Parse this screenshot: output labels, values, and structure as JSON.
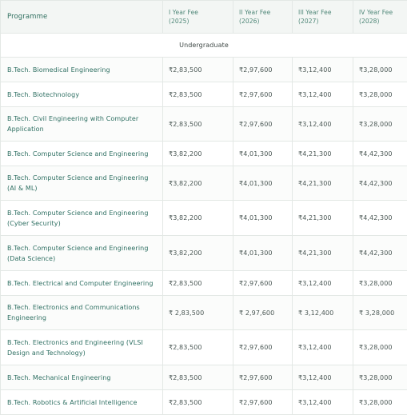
{
  "table": {
    "headers": {
      "programme": "Programme",
      "year1_line1": "I Year Fee",
      "year1_line2": "(2025)",
      "year2_line1": "II Year Fee",
      "year2_line2": "(2026)",
      "year3_line1": "III Year Fee",
      "year3_line2": "(2027)",
      "year4_line1": "IV Year Fee",
      "year4_line2": "(2028)"
    },
    "section_label": "Undergraduate",
    "rows": [
      {
        "programme": "B.Tech. Biomedical Engineering",
        "y1": "₹2,83,500",
        "y2": "₹2,97,600",
        "y3": "₹3,12,400",
        "y4": "₹3,28,000"
      },
      {
        "programme": "B.Tech. Biotechnology",
        "y1": "₹2,83,500",
        "y2": "₹2,97,600",
        "y3": "₹3,12,400",
        "y4": "₹3,28,000"
      },
      {
        "programme": "B.Tech. Civil Engineering with Computer Application",
        "y1": "₹2,83,500",
        "y2": "₹2,97,600",
        "y3": "₹3,12,400",
        "y4": "₹3,28,000"
      },
      {
        "programme": "B.Tech. Computer Science and Engineering",
        "y1": "₹3,82,200",
        "y2": "₹4,01,300",
        "y3": "₹4,21,300",
        "y4": "₹4,42,300"
      },
      {
        "programme": "B.Tech. Computer Science and Engineering (AI & ML)",
        "y1": "₹3,82,200",
        "y2": "₹4,01,300",
        "y3": "₹4,21,300",
        "y4": "₹4,42,300"
      },
      {
        "programme": "B.Tech. Computer Science and Engineering (Cyber Security)",
        "y1": "₹3,82,200",
        "y2": "₹4,01,300",
        "y3": "₹4,21,300",
        "y4": "₹4,42,300"
      },
      {
        "programme": "B.Tech. Computer Science and Engineering (Data Science)",
        "y1": "₹3,82,200",
        "y2": "₹4,01,300",
        "y3": "₹4,21,300",
        "y4": "₹4,42,300"
      },
      {
        "programme": "B.Tech. Electrical and Computer Engineering",
        "y1": "₹2,83,500",
        "y2": "₹2,97,600",
        "y3": "₹3,12,400",
        "y4": "₹3,28,000"
      },
      {
        "programme": "B.Tech. Electronics and Communications Engineering",
        "y1": "₹ 2,83,500",
        "y2": "₹ 2,97,600",
        "y3": "₹ 3,12,400",
        "y4": "₹ 3,28,000"
      },
      {
        "programme": "B.Tech. Electronics and Engineering (VLSI Design and Technology)",
        "y1": "₹2,83,500",
        "y2": "₹2,97,600",
        "y3": "₹3,12,400",
        "y4": "₹3,28,000"
      },
      {
        "programme": "B.Tech. Mechanical Engineering",
        "y1": "₹2,83,500",
        "y2": "₹2,97,600",
        "y3": "₹3,12,400",
        "y4": "₹3,28,000"
      },
      {
        "programme": "B.Tech. Robotics & Artificial Intelligence",
        "y1": "₹2,83,500",
        "y2": "₹2,97,600",
        "y3": "₹3,12,400",
        "y4": "₹3,28,000"
      }
    ]
  }
}
